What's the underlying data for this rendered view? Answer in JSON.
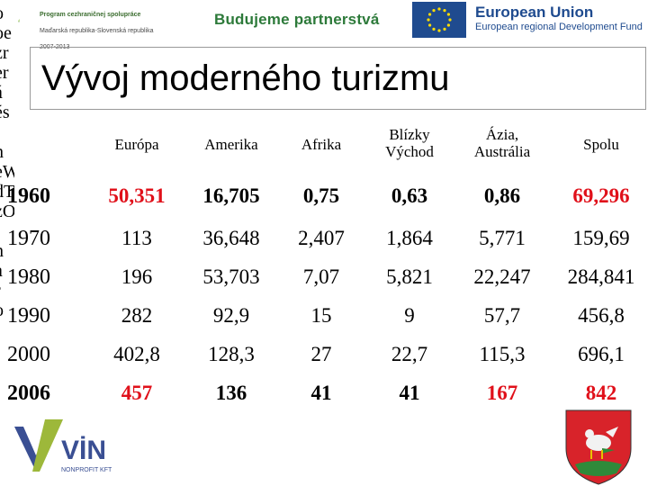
{
  "banner": {
    "program_lines": [
      "Program cezhraničnej spolupráce",
      "Maďarská republika-Slovenská republika",
      "2007-2013"
    ],
    "partnership": "Budujeme partnerstvá",
    "eu_title": "European Union",
    "eu_subtitle": "European regional Development Fund"
  },
  "slide": {
    "title": "Vývoj moderného turizmu"
  },
  "left_edge_text": "o\noe\nzr\ner\ná\nés\n:\nn\neW\ndT\nzO\ni\nn\na\nr\no",
  "table": {
    "columns": [
      "Európa",
      "Amerika",
      "Afrika",
      "Blízky\nVýchod",
      "Ázia,\nAustrália",
      "Spolu"
    ],
    "rows": [
      {
        "year": "1960",
        "values": [
          "50,351",
          "16,705",
          "0,75",
          "0,63",
          "0,86",
          "69,296"
        ]
      },
      {
        "year": "1970",
        "values": [
          "113",
          "36,648",
          "2,407",
          "1,864",
          "5,771",
          "159,69"
        ]
      },
      {
        "year": "1980",
        "values": [
          "196",
          "53,703",
          "7,07",
          "5,821",
          "22,247",
          "284,841"
        ]
      },
      {
        "year": "1990",
        "values": [
          "282",
          "92,9",
          "15",
          "9",
          "57,7",
          "456,8"
        ]
      },
      {
        "year": "2000",
        "values": [
          "402,8",
          "128,3",
          "27",
          "22,7",
          "115,3",
          "696,1"
        ]
      },
      {
        "year": "2006",
        "values": [
          "457",
          "136",
          "41",
          "41",
          "167",
          "842"
        ]
      }
    ]
  },
  "footer": {
    "vin_logo": "VİN",
    "vin_sub": "NONPROFIT KFT"
  },
  "colors": {
    "highlight_red": "#e0101a",
    "eu_blue": "#1f4b8f",
    "partner_green": "#2d7a3a"
  }
}
